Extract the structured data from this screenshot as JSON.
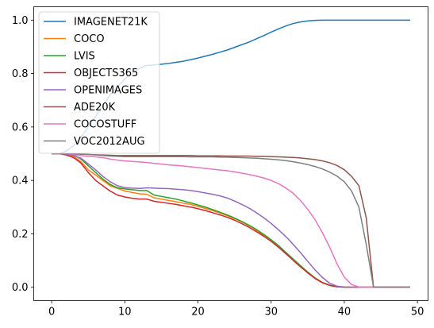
{
  "chart_data": {
    "type": "line",
    "title": "",
    "xlabel": "",
    "ylabel": "",
    "xlim": [
      -2.45,
      51.45
    ],
    "ylim": [
      -0.05,
      1.05
    ],
    "xticks": [
      0,
      10,
      20,
      30,
      40,
      50
    ],
    "xtick_labels": [
      "0",
      "10",
      "20",
      "30",
      "40",
      "50"
    ],
    "yticks": [
      0.0,
      0.2,
      0.4,
      0.6,
      0.8,
      1.0
    ],
    "ytick_labels": [
      "0.0",
      "0.2",
      "0.4",
      "0.6",
      "0.8",
      "1.0"
    ],
    "grid": false,
    "legend_position": "top-left",
    "x": [
      0,
      1,
      2,
      3,
      4,
      5,
      6,
      7,
      8,
      9,
      10,
      11,
      12,
      13,
      14,
      15,
      16,
      17,
      18,
      19,
      20,
      21,
      22,
      23,
      24,
      25,
      26,
      27,
      28,
      29,
      30,
      31,
      32,
      33,
      34,
      35,
      36,
      37,
      38,
      39,
      40,
      41,
      42,
      43,
      44,
      45,
      46,
      47,
      48,
      49
    ],
    "series": [
      {
        "name": "IMAGENET21K",
        "color": "#1f77b4",
        "values": [
          0.5,
          0.5,
          0.51,
          0.53,
          0.56,
          0.6,
          0.64,
          0.68,
          0.72,
          0.75,
          0.78,
          0.8,
          0.82,
          0.83,
          0.832,
          0.835,
          0.838,
          0.842,
          0.846,
          0.852,
          0.858,
          0.865,
          0.872,
          0.88,
          0.888,
          0.898,
          0.908,
          0.918,
          0.93,
          0.942,
          0.955,
          0.967,
          0.978,
          0.987,
          0.993,
          0.997,
          0.999,
          1.0,
          1.0,
          1.0,
          1.0,
          1.0,
          1.0,
          1.0,
          1.0,
          1.0,
          1.0,
          1.0,
          1.0,
          1.0
        ]
      },
      {
        "name": "COCO",
        "color": "#ff7f0e",
        "values": [
          0.5,
          0.5,
          0.5,
          0.49,
          0.47,
          0.44,
          0.42,
          0.4,
          0.38,
          0.37,
          0.36,
          0.355,
          0.35,
          0.348,
          0.335,
          0.33,
          0.325,
          0.32,
          0.315,
          0.31,
          0.303,
          0.295,
          0.287,
          0.278,
          0.268,
          0.257,
          0.244,
          0.23,
          0.213,
          0.195,
          0.174,
          0.152,
          0.128,
          0.103,
          0.078,
          0.054,
          0.033,
          0.017,
          0.007,
          0.002,
          0.0,
          0.0,
          0.0,
          0.0,
          0.0,
          0.0,
          0.0,
          0.0,
          0.0,
          0.0
        ]
      },
      {
        "name": "LVIS",
        "color": "#2ca02c",
        "values": [
          0.5,
          0.5,
          0.5,
          0.495,
          0.48,
          0.455,
          0.43,
          0.405,
          0.385,
          0.372,
          0.368,
          0.365,
          0.362,
          0.362,
          0.345,
          0.34,
          0.335,
          0.33,
          0.323,
          0.316,
          0.308,
          0.3,
          0.291,
          0.281,
          0.271,
          0.259,
          0.246,
          0.232,
          0.216,
          0.198,
          0.178,
          0.156,
          0.131,
          0.106,
          0.081,
          0.057,
          0.035,
          0.018,
          0.008,
          0.002,
          0.0,
          0.0,
          0.0,
          0.0,
          0.0,
          0.0,
          0.0,
          0.0,
          0.0,
          0.0
        ]
      },
      {
        "name": "OBJECTS365",
        "color": "#d62728",
        "values": [
          0.5,
          0.5,
          0.495,
          0.485,
          0.465,
          0.43,
          0.4,
          0.38,
          0.36,
          0.345,
          0.338,
          0.333,
          0.33,
          0.33,
          0.322,
          0.318,
          0.314,
          0.31,
          0.305,
          0.3,
          0.294,
          0.287,
          0.279,
          0.271,
          0.262,
          0.251,
          0.238,
          0.224,
          0.208,
          0.191,
          0.172,
          0.15,
          0.126,
          0.101,
          0.077,
          0.054,
          0.033,
          0.017,
          0.007,
          0.002,
          0.0,
          0.0,
          0.0,
          0.0,
          0.0,
          0.0,
          0.0,
          0.0,
          0.0,
          0.0
        ]
      },
      {
        "name": "OPENIMAGES",
        "color": "#9467bd",
        "values": [
          0.5,
          0.5,
          0.498,
          0.493,
          0.483,
          0.462,
          0.44,
          0.415,
          0.395,
          0.38,
          0.373,
          0.371,
          0.37,
          0.372,
          0.371,
          0.37,
          0.369,
          0.367,
          0.365,
          0.362,
          0.358,
          0.353,
          0.348,
          0.342,
          0.334,
          0.323,
          0.31,
          0.296,
          0.279,
          0.26,
          0.239,
          0.215,
          0.19,
          0.161,
          0.13,
          0.097,
          0.065,
          0.037,
          0.015,
          0.004,
          0.001,
          0.0,
          0.0,
          0.0,
          0.0,
          0.0,
          0.0,
          0.0,
          0.0,
          0.0
        ]
      },
      {
        "name": "ADE20K",
        "color": "#8c564b",
        "values": [
          0.5,
          0.5,
          0.5,
          0.499,
          0.498,
          0.497,
          0.496,
          0.495,
          0.494,
          0.493,
          0.493,
          0.493,
          0.493,
          0.493,
          0.493,
          0.493,
          0.493,
          0.493,
          0.493,
          0.493,
          0.492,
          0.492,
          0.492,
          0.492,
          0.491,
          0.491,
          0.491,
          0.491,
          0.49,
          0.49,
          0.489,
          0.488,
          0.487,
          0.486,
          0.484,
          0.481,
          0.478,
          0.473,
          0.466,
          0.456,
          0.44,
          0.415,
          0.38,
          0.26,
          0.0,
          0.0,
          0.0,
          0.0,
          0.0,
          0.0
        ]
      },
      {
        "name": "COCOSTUFF",
        "color": "#e377c2",
        "values": [
          0.5,
          0.5,
          0.5,
          0.497,
          0.493,
          0.49,
          0.488,
          0.485,
          0.48,
          0.476,
          0.473,
          0.471,
          0.469,
          0.467,
          0.464,
          0.461,
          0.458,
          0.456,
          0.454,
          0.451,
          0.448,
          0.445,
          0.442,
          0.439,
          0.436,
          0.432,
          0.427,
          0.422,
          0.416,
          0.409,
          0.4,
          0.388,
          0.372,
          0.352,
          0.325,
          0.292,
          0.253,
          0.205,
          0.15,
          0.088,
          0.038,
          0.01,
          0.001,
          0.0,
          0.0,
          0.0,
          0.0,
          0.0,
          0.0,
          0.0
        ]
      },
      {
        "name": "VOC2012AUG",
        "color": "#7f7f7f",
        "values": [
          0.5,
          0.5,
          0.5,
          0.5,
          0.499,
          0.497,
          0.495,
          0.493,
          0.491,
          0.49,
          0.489,
          0.489,
          0.489,
          0.489,
          0.489,
          0.489,
          0.489,
          0.489,
          0.489,
          0.488,
          0.488,
          0.488,
          0.488,
          0.487,
          0.487,
          0.486,
          0.485,
          0.484,
          0.483,
          0.481,
          0.479,
          0.477,
          0.474,
          0.47,
          0.465,
          0.459,
          0.452,
          0.443,
          0.431,
          0.416,
          0.395,
          0.36,
          0.3,
          0.16,
          0.0,
          0.0,
          0.0,
          0.0,
          0.0,
          0.0
        ]
      }
    ]
  }
}
